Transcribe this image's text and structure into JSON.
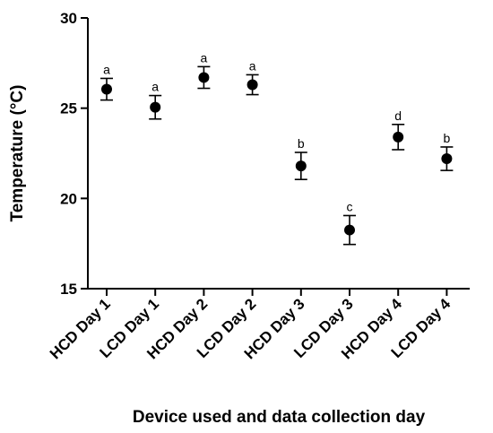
{
  "chart_data": {
    "type": "scatter",
    "title": "",
    "xlabel": "Device used and data collection day",
    "ylabel": "Temperature (°C)",
    "ylim": [
      15,
      30
    ],
    "yticks": [
      "15",
      "20",
      "25",
      "30"
    ],
    "grid": false,
    "categories": [
      "HCD Day 1",
      "LCD Day 1",
      "HCD Day 2",
      "LCD Day 2",
      "HCD Day 3",
      "LCD Day 3",
      "HCD Day 4",
      "LCD Day 4"
    ],
    "series": [
      {
        "values": [
          26.05,
          25.05,
          26.7,
          26.3,
          21.8,
          18.25,
          23.4,
          22.2
        ],
        "error": [
          0.6,
          0.65,
          0.6,
          0.55,
          0.75,
          0.8,
          0.7,
          0.65
        ],
        "letters": [
          "a",
          "a",
          "a",
          "a",
          "b",
          "c",
          "d",
          "b"
        ]
      }
    ]
  }
}
